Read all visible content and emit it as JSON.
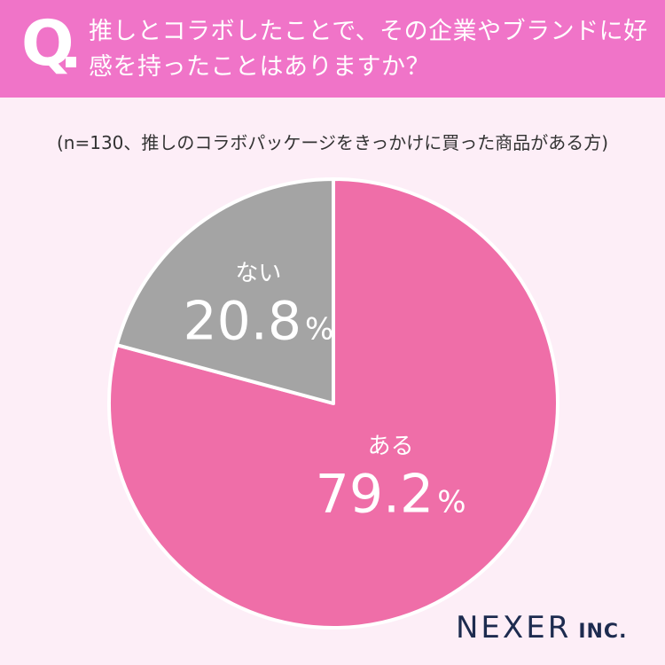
{
  "header": {
    "q_label": "Q",
    "question": "推しとコラボしたことで、その企業やブランドに好感を持ったことはありますか？"
  },
  "subtitle": "(n=130、推しのコラボパッケージをきっかけに買った商品がある方)",
  "chart_data": {
    "type": "pie",
    "title": "推しとコラボしたことで、その企業やブランドに好感を持ったことはありますか？",
    "subtitle": "(n=130、推しのコラボパッケージをきっかけに買った商品がある方)",
    "slices": [
      {
        "label": "ある",
        "value": 79.2,
        "value_text": "79.2",
        "unit": "%",
        "color": "#ef6ea8"
      },
      {
        "label": "ない",
        "value": 20.8,
        "value_text": "20.8",
        "unit": "%",
        "color": "#a4a4a4"
      }
    ],
    "start": "12 o'clock",
    "direction": "clockwise",
    "legend": "none"
  },
  "brand": {
    "name": "NEXER",
    "suffix": "INC."
  },
  "colors": {
    "header": "#f074c8",
    "background": "#fdeef7",
    "brand": "#1d2b4f"
  }
}
